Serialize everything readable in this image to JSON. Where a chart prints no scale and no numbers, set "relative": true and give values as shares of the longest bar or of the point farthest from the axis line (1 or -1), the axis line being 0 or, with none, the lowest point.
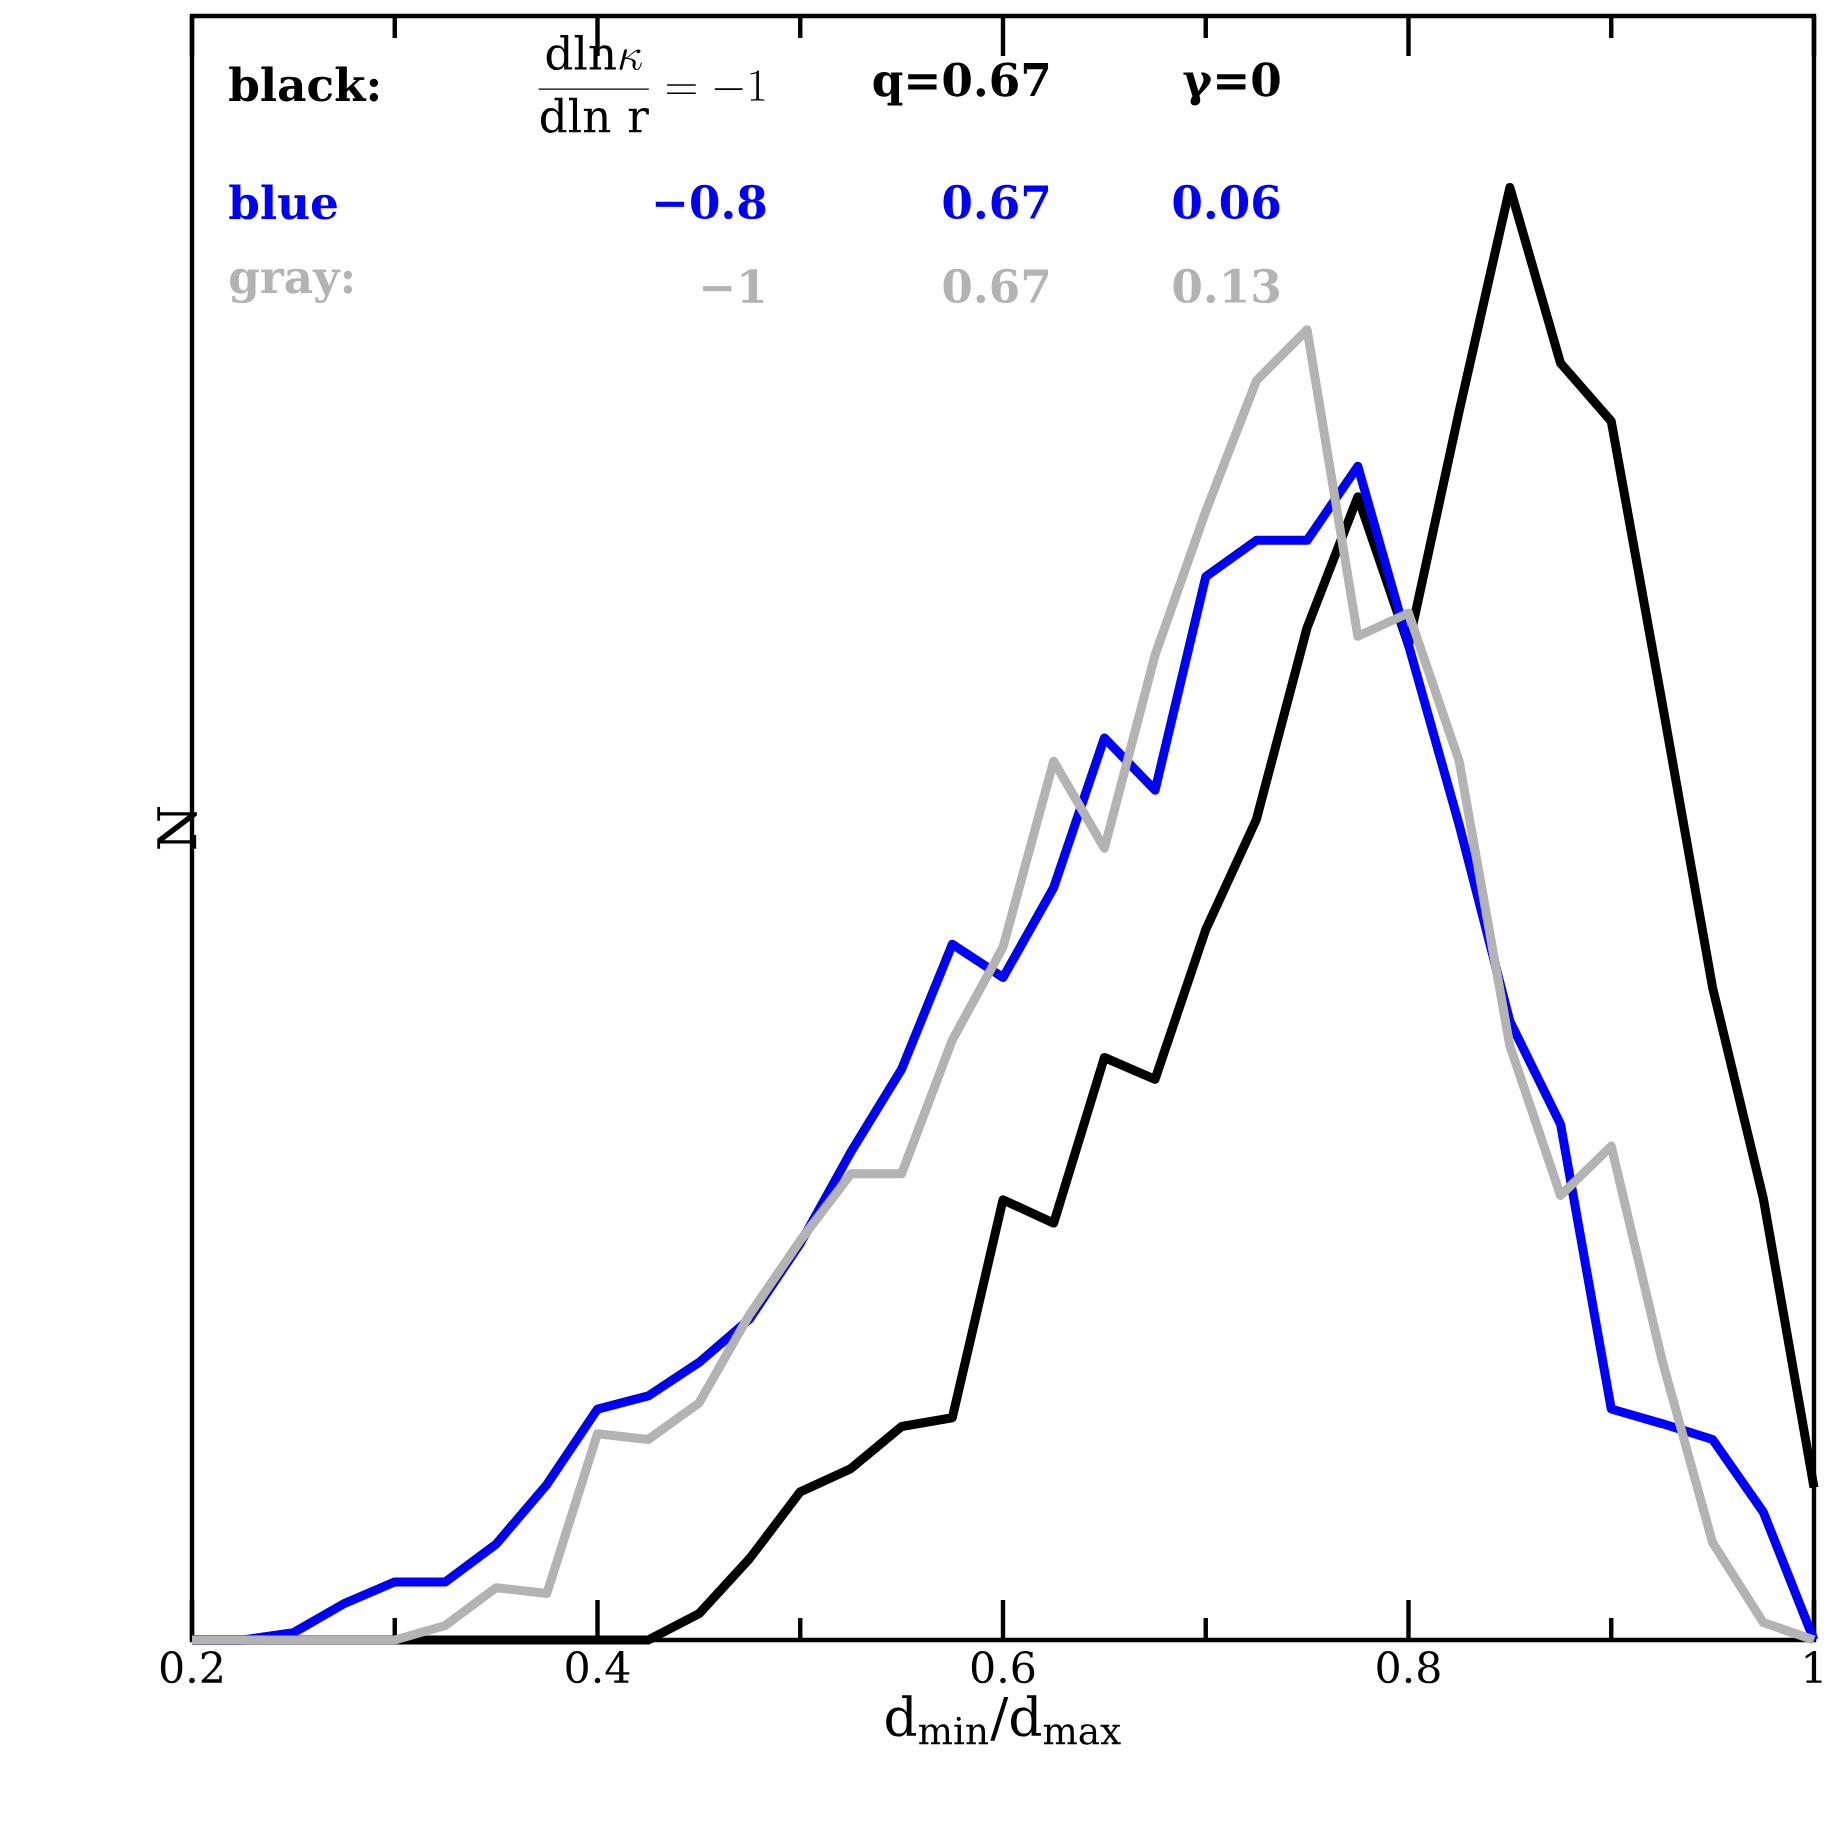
{
  "chart_data": {
    "type": "line",
    "xlabel": "d$_{min}$/d$_{max}$",
    "ylabel": "N",
    "relative": true,
    "xlim": [
      0.2,
      1
    ],
    "xticks": [
      {
        "value": 0.2,
        "label": "0.2"
      },
      {
        "value": 0.4,
        "label": "0.4"
      },
      {
        "value": 0.6,
        "label": "0.6"
      },
      {
        "value": 0.8,
        "label": "0.8"
      },
      1
    ],
    "x": [
      0.2,
      0.225,
      0.25,
      0.275,
      0.3,
      0.325,
      0.35,
      0.375,
      0.4,
      0.425,
      0.45,
      0.475,
      0.5,
      0.525,
      0.55,
      0.575,
      0.6,
      0.625,
      0.65,
      0.675,
      0.7,
      0.725,
      0.75,
      0.775,
      0.8,
      0.825,
      0.85,
      0.875,
      0.9,
      0.925,
      0.95,
      0.975,
      1.0
    ],
    "series": [
      {
        "name": "black:",
        "color": "#000000",
        "values": [
          0,
          0,
          0,
          0,
          0,
          0,
          0,
          0,
          0,
          0,
          0.018,
          0.056,
          0.102,
          0.118,
          0.147,
          0.153,
          0.303,
          0.287,
          0.401,
          0.386,
          0.489,
          0.565,
          0.697,
          0.787,
          0.685,
          0.846,
          1,
          0.879,
          0.839,
          0.646,
          0.449,
          0.304,
          0.105
        ]
      },
      {
        "name": "blue",
        "color": "#0000ff",
        "values": [
          0,
          0,
          0.005,
          0.025,
          0.04,
          0.04,
          0.066,
          0.107,
          0.159,
          0.168,
          0.191,
          0.221,
          0.273,
          0.336,
          0.393,
          0.479,
          0.456,
          0.518,
          0.621,
          0.585,
          0.732,
          0.757,
          0.757,
          0.808,
          0.685,
          0.561,
          0.426,
          0.355,
          0.159,
          0.149,
          0.138,
          0.088,
          0
        ]
      },
      {
        "name": "gray:",
        "color": "#b3b3b3",
        "values": [
          0,
          0,
          0,
          0,
          0,
          0.01,
          0.036,
          0.032,
          0.142,
          0.138,
          0.163,
          0.224,
          0.275,
          0.321,
          0.321,
          0.413,
          0.477,
          0.605,
          0.545,
          0.678,
          0.777,
          0.867,
          0.902,
          0.691,
          0.707,
          0.605,
          0.409,
          0.306,
          0.34,
          0.193,
          0.067,
          0.012,
          0
        ]
      }
    ],
    "annotations": [
      "\\frac{\\mathrm{dln}\\kappa}{\\mathrm{dln\\ r}}=-1",
      "q=0.67",
      "γ=0",
      "−0.8",
      "0.67",
      "0.06",
      "−1",
      "0.67",
      "0.13"
    ]
  }
}
